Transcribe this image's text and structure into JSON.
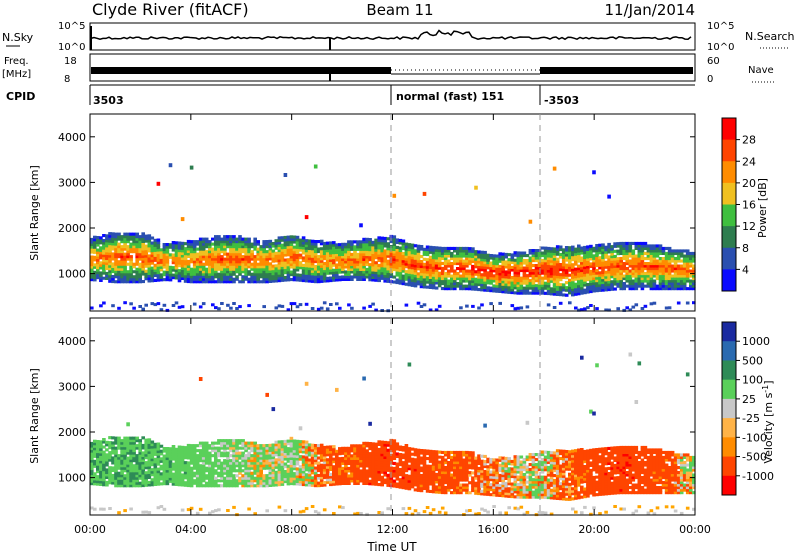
{
  "header": {
    "station": "Clyde River (fitACF)",
    "beam": "Beam 11",
    "date": "11/Jan/2014"
  },
  "panels": {
    "nsky": {
      "label": "N.Sky",
      "tick_top": "10^5",
      "tick_bottom": "10^0",
      "right_label": "N.Search",
      "right_top": "10^5",
      "right_bottom": "10^0"
    },
    "freq": {
      "label_line1": "Freq.",
      "label_line2": "[MHz]",
      "tick_top": "18",
      "tick_bottom": "8",
      "right_label": "Nave",
      "right_top": "60",
      "right_bottom": "0"
    },
    "cpid": {
      "label": "CPID",
      "segments": [
        "3503",
        "normal (fast) 151",
        "-3503"
      ]
    }
  },
  "x_axis": {
    "title": "Time UT",
    "ticks": [
      "00:00",
      "04:00",
      "08:00",
      "12:00",
      "16:00",
      "20:00",
      "00:00"
    ]
  },
  "colors": {
    "power": [
      "#0a0aff",
      "#2a4fb0",
      "#2e7d4f",
      "#3fbf3f",
      "#f0c020",
      "#ff8c00",
      "#ff4400",
      "#ff0000"
    ],
    "velocity": [
      "#ff0000",
      "#ff4500",
      "#ff8c00",
      "#ffb347",
      "#c8c8c8",
      "#5ad05a",
      "#2e8b57",
      "#2a6ab0",
      "#1a2aa0"
    ]
  },
  "chart_data": [
    {
      "type": "heatmap",
      "title": "",
      "xlabel": "",
      "ylabel": "Slant Range [km]",
      "xlim": [
        0,
        24
      ],
      "ylim": [
        180,
        4500
      ],
      "yticks": [
        "1000",
        "2000",
        "3000",
        "4000"
      ],
      "colorbar": {
        "label": "Power [dB]",
        "ticks": [
          "4",
          "8",
          "12",
          "16",
          "20",
          "24",
          "28"
        ],
        "range": [
          0,
          32
        ]
      },
      "echo_band_hours": [
        0,
        1,
        2,
        3,
        4,
        5,
        6,
        7,
        8,
        9,
        10,
        11,
        12,
        13,
        14,
        15,
        16,
        17,
        18,
        19,
        20,
        21,
        22,
        23,
        24
      ],
      "echo_band_center_km": [
        1300,
        1350,
        1350,
        1250,
        1250,
        1300,
        1300,
        1250,
        1350,
        1250,
        1250,
        1300,
        1300,
        1150,
        1100,
        1100,
        1000,
        1000,
        1050,
        1050,
        1100,
        1150,
        1150,
        1100,
        1050
      ],
      "echo_band_half_width_km": [
        450,
        550,
        550,
        400,
        450,
        500,
        500,
        450,
        500,
        450,
        400,
        450,
        500,
        450,
        450,
        450,
        400,
        450,
        500,
        550,
        500,
        500,
        500,
        450,
        400
      ],
      "peak_power_db": [
        24,
        26,
        27,
        25,
        23,
        26,
        26,
        24,
        25,
        24,
        25,
        26,
        27,
        28,
        28,
        29,
        30,
        30,
        30,
        29,
        28,
        27,
        27,
        26,
        25
      ]
    },
    {
      "type": "heatmap",
      "title": "",
      "xlabel": "Time UT",
      "ylabel": "Slant Range [km]",
      "xlim": [
        0,
        24
      ],
      "ylim": [
        180,
        4500
      ],
      "yticks": [
        "1000",
        "2000",
        "3000",
        "4000"
      ],
      "colorbar": {
        "label": "Velocity [m s^-1]",
        "ticks": [
          "1000",
          "500",
          "100",
          "25",
          "-25",
          "-100",
          "-500",
          "-1000"
        ],
        "range": [
          -1200,
          1200
        ]
      },
      "echo_band_hours": [
        0,
        1,
        2,
        3,
        4,
        5,
        6,
        7,
        8,
        9,
        10,
        11,
        12,
        13,
        14,
        15,
        16,
        17,
        18,
        19,
        20,
        21,
        22,
        23,
        24
      ],
      "echo_band_center_km": [
        1300,
        1350,
        1350,
        1250,
        1250,
        1300,
        1300,
        1250,
        1350,
        1250,
        1250,
        1300,
        1300,
        1150,
        1100,
        1100,
        1000,
        1000,
        1050,
        1050,
        1100,
        1150,
        1150,
        1100,
        1050
      ],
      "echo_band_half_width_km": [
        450,
        550,
        550,
        400,
        450,
        500,
        500,
        450,
        500,
        450,
        400,
        450,
        500,
        450,
        450,
        450,
        400,
        450,
        500,
        550,
        500,
        500,
        500,
        450,
        400
      ],
      "mean_velocity_ms": [
        400,
        450,
        500,
        350,
        300,
        250,
        150,
        100,
        200,
        -100,
        -200,
        -300,
        -350,
        -300,
        -250,
        -200,
        -100,
        0,
        50,
        -150,
        -300,
        -350,
        -300,
        -200,
        100
      ]
    }
  ]
}
